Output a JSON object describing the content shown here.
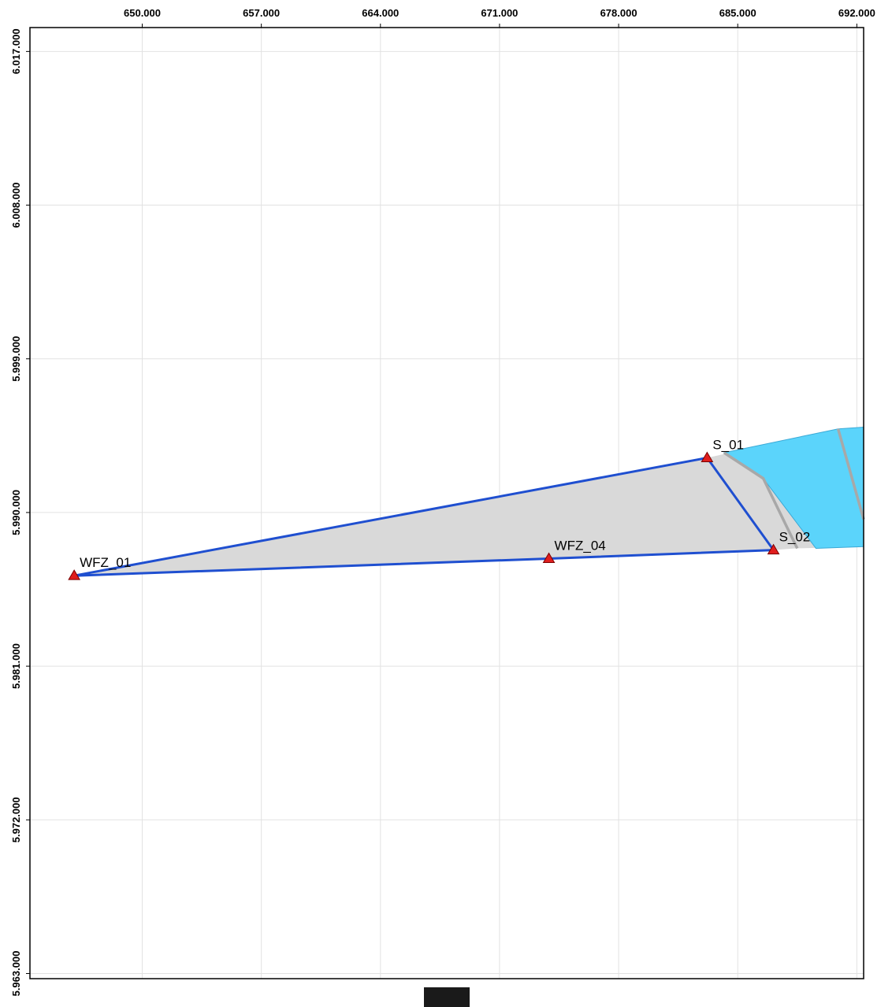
{
  "x_ticks": [
    {
      "value": 650000,
      "label": "650.000"
    },
    {
      "value": 657000,
      "label": "657.000"
    },
    {
      "value": 664000,
      "label": "664.000"
    },
    {
      "value": 671000,
      "label": "671.000"
    },
    {
      "value": 678000,
      "label": "678.000"
    },
    {
      "value": 685000,
      "label": "685.000"
    },
    {
      "value": 692000,
      "label": "692.000"
    }
  ],
  "y_ticks": [
    {
      "value": 6017000,
      "label": "6.017.000"
    },
    {
      "value": 6008000,
      "label": "6.008.000"
    },
    {
      "value": 5999000,
      "label": "5.999.000"
    },
    {
      "value": 5990000,
      "label": "5.990.000"
    },
    {
      "value": 5981000,
      "label": "5.981.000"
    },
    {
      "value": 5972000,
      "label": "5.972.000"
    },
    {
      "value": 5963000,
      "label": "5.963.000"
    }
  ],
  "x_range": [
    643400,
    692400
  ],
  "y_range": [
    5962700,
    6018400
  ],
  "stations": [
    {
      "id": "WFZ_01",
      "label": "WFZ_01",
      "x": 646000,
      "y": 5986300
    },
    {
      "id": "WFZ_04",
      "label": "WFZ_04",
      "x": 673900,
      "y": 5987300
    },
    {
      "id": "S_01",
      "label": "S_01",
      "x": 683200,
      "y": 5993200
    },
    {
      "id": "S_02",
      "label": "S_02",
      "x": 687100,
      "y": 5987800
    }
  ],
  "gray_polygon": [
    [
      646000,
      5986300
    ],
    [
      683200,
      5993200
    ],
    [
      685000,
      5993600
    ],
    [
      692400,
      5995000
    ],
    [
      692400,
      5988000
    ],
    [
      688400,
      5987900
    ],
    [
      687100,
      5987800
    ]
  ],
  "blue_polygon": [
    [
      684200,
      5993500
    ],
    [
      690900,
      5994900
    ],
    [
      692400,
      5995000
    ],
    [
      692400,
      5988000
    ],
    [
      689600,
      5987900
    ],
    [
      686500,
      5992000
    ]
  ],
  "divider_lines": [
    [
      [
        684200,
        5993500
      ],
      [
        686500,
        5992000
      ],
      [
        688500,
        5987900
      ]
    ],
    [
      [
        690900,
        5994900
      ],
      [
        692400,
        5989600
      ]
    ]
  ],
  "network_lines": [
    [
      [
        646000,
        5986300
      ],
      [
        683200,
        5993200
      ],
      [
        687100,
        5987800
      ],
      [
        673900,
        5987300
      ],
      [
        646000,
        5986300
      ]
    ]
  ],
  "colors": {
    "gray_fill": "#d9d9d9",
    "blue_fill": "#5bd4fb",
    "network": "#1f4fd0",
    "station": "#e01e1e",
    "divider": "#a8a8a8",
    "grid": "#e2e2e2",
    "scale_block": "#1a1a1a"
  }
}
